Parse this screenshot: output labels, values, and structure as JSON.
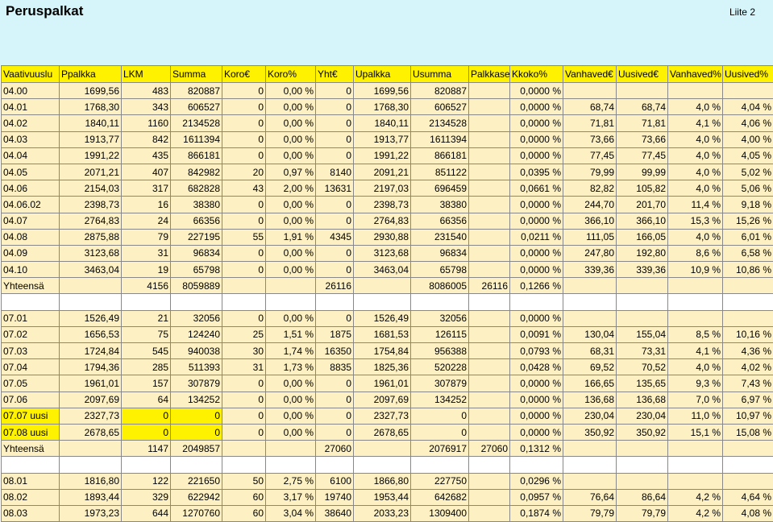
{
  "title": "Peruspalkat",
  "appendix": "Liite 2",
  "headers": [
    "Vaativuusluokka",
    "Ppalkka",
    "LKM",
    "Summa",
    "Koro€",
    "Koro%",
    "Yht€",
    "Upalkka",
    "Usumma",
    "Palkkasesitys",
    "Kkoko%",
    "Vanhaved€",
    "Uusived€",
    "Vanhaved%",
    "Uusived%"
  ],
  "header_display": [
    "Vaativuuslu",
    "Ppalkka",
    "LKM",
    "Summa",
    "Koro€",
    "Koro%",
    "Yht€",
    "Upalkka",
    "Usumma",
    "Palkkase",
    "Kkoko%",
    "Vanhaved€",
    "Uusived€",
    "Vanhaved%",
    "Uusived%"
  ],
  "rows": [
    {
      "type": "data",
      "cells": [
        "04.00",
        "1699,56",
        "483",
        "820887",
        "0",
        "0,00 %",
        "0",
        "1699,56",
        "820887",
        "",
        "0,0000 %",
        "",
        "",
        "",
        ""
      ]
    },
    {
      "type": "data",
      "cells": [
        "04.01",
        "1768,30",
        "343",
        "606527",
        "0",
        "0,00 %",
        "0",
        "1768,30",
        "606527",
        "",
        "0,0000 %",
        "68,74",
        "68,74",
        "4,0 %",
        "4,04 %"
      ]
    },
    {
      "type": "data",
      "cells": [
        "04.02",
        "1840,11",
        "1160",
        "2134528",
        "0",
        "0,00 %",
        "0",
        "1840,11",
        "2134528",
        "",
        "0,0000 %",
        "71,81",
        "71,81",
        "4,1 %",
        "4,06 %"
      ]
    },
    {
      "type": "data",
      "cells": [
        "04.03",
        "1913,77",
        "842",
        "1611394",
        "0",
        "0,00 %",
        "0",
        "1913,77",
        "1611394",
        "",
        "0,0000 %",
        "73,66",
        "73,66",
        "4,0 %",
        "4,00 %"
      ]
    },
    {
      "type": "data",
      "cells": [
        "04.04",
        "1991,22",
        "435",
        "866181",
        "0",
        "0,00 %",
        "0",
        "1991,22",
        "866181",
        "",
        "0,0000 %",
        "77,45",
        "77,45",
        "4,0 %",
        "4,05 %"
      ]
    },
    {
      "type": "data",
      "cells": [
        "04.05",
        "2071,21",
        "407",
        "842982",
        "20",
        "0,97 %",
        "8140",
        "2091,21",
        "851122",
        "",
        "0,0395 %",
        "79,99",
        "99,99",
        "4,0 %",
        "5,02 %"
      ]
    },
    {
      "type": "data",
      "cells": [
        "04.06",
        "2154,03",
        "317",
        "682828",
        "43",
        "2,00 %",
        "13631",
        "2197,03",
        "696459",
        "",
        "0,0661 %",
        "82,82",
        "105,82",
        "4,0 %",
        "5,06 %"
      ]
    },
    {
      "type": "data",
      "cells": [
        "04.06.02",
        "2398,73",
        "16",
        "38380",
        "0",
        "0,00 %",
        "0",
        "2398,73",
        "38380",
        "",
        "0,0000 %",
        "244,70",
        "201,70",
        "11,4 %",
        "9,18 %"
      ]
    },
    {
      "type": "data",
      "cells": [
        "04.07",
        "2764,83",
        "24",
        "66356",
        "0",
        "0,00 %",
        "0",
        "2764,83",
        "66356",
        "",
        "0,0000 %",
        "366,10",
        "366,10",
        "15,3 %",
        "15,26 %"
      ]
    },
    {
      "type": "data",
      "cells": [
        "04.08",
        "2875,88",
        "79",
        "227195",
        "55",
        "1,91 %",
        "4345",
        "2930,88",
        "231540",
        "",
        "0,0211 %",
        "111,05",
        "166,05",
        "4,0 %",
        "6,01 %"
      ]
    },
    {
      "type": "data",
      "cells": [
        "04.09",
        "3123,68",
        "31",
        "96834",
        "0",
        "0,00 %",
        "0",
        "3123,68",
        "96834",
        "",
        "0,0000 %",
        "247,80",
        "192,80",
        "8,6 %",
        "6,58 %"
      ]
    },
    {
      "type": "data",
      "cells": [
        "04.10",
        "3463,04",
        "19",
        "65798",
        "0",
        "0,00 %",
        "0",
        "3463,04",
        "65798",
        "",
        "0,0000 %",
        "339,36",
        "339,36",
        "10,9 %",
        "10,86 %"
      ]
    },
    {
      "type": "total",
      "cells": [
        "Yhteensä",
        "",
        "4156",
        "8059889",
        "",
        "",
        "26116",
        "",
        "8086005",
        "26116",
        "0,1266 %",
        "",
        "",
        "",
        ""
      ]
    },
    {
      "type": "blank",
      "cells": [
        "",
        "",
        "",
        "",
        "",
        "",
        "",
        "",
        "",
        "",
        "",
        "",
        "",
        "",
        ""
      ]
    },
    {
      "type": "data",
      "cells": [
        "07.01",
        "1526,49",
        "21",
        "32056",
        "0",
        "0,00 %",
        "0",
        "1526,49",
        "32056",
        "",
        "0,0000 %",
        "",
        "",
        "",
        ""
      ]
    },
    {
      "type": "data",
      "cells": [
        "07.02",
        "1656,53",
        "75",
        "124240",
        "25",
        "1,51 %",
        "1875",
        "1681,53",
        "126115",
        "",
        "0,0091 %",
        "130,04",
        "155,04",
        "8,5 %",
        "10,16 %"
      ]
    },
    {
      "type": "data",
      "cells": [
        "07.03",
        "1724,84",
        "545",
        "940038",
        "30",
        "1,74 %",
        "16350",
        "1754,84",
        "956388",
        "",
        "0,0793 %",
        "68,31",
        "73,31",
        "4,1 %",
        "4,36 %"
      ]
    },
    {
      "type": "data",
      "cells": [
        "07.04",
        "1794,36",
        "285",
        "511393",
        "31",
        "1,73 %",
        "8835",
        "1825,36",
        "520228",
        "",
        "0,0428 %",
        "69,52",
        "70,52",
        "4,0 %",
        "4,02 %"
      ]
    },
    {
      "type": "data",
      "cells": [
        "07.05",
        "1961,01",
        "157",
        "307879",
        "0",
        "0,00 %",
        "0",
        "1961,01",
        "307879",
        "",
        "0,0000 %",
        "166,65",
        "135,65",
        "9,3 %",
        "7,43 %"
      ]
    },
    {
      "type": "data",
      "cells": [
        "07.06",
        "2097,69",
        "64",
        "134252",
        "0",
        "0,00 %",
        "0",
        "2097,69",
        "134252",
        "",
        "0,0000 %",
        "136,68",
        "136,68",
        "7,0 %",
        "6,97 %"
      ]
    },
    {
      "type": "highlight",
      "cells": [
        "07.07 uusi",
        "2327,73",
        "0",
        "0",
        "0",
        "0,00 %",
        "0",
        "2327,73",
        "0",
        "",
        "0,0000 %",
        "230,04",
        "230,04",
        "11,0 %",
        "10,97 %"
      ]
    },
    {
      "type": "highlight",
      "cells": [
        "07.08 uusi",
        "2678,65",
        "0",
        "0",
        "0",
        "0,00 %",
        "0",
        "2678,65",
        "0",
        "",
        "0,0000 %",
        "350,92",
        "350,92",
        "15,1 %",
        "15,08 %"
      ]
    },
    {
      "type": "total",
      "cells": [
        "Yhteensä",
        "",
        "1147",
        "2049857",
        "",
        "",
        "27060",
        "",
        "2076917",
        "27060",
        "0,1312 %",
        "",
        "",
        "",
        ""
      ]
    },
    {
      "type": "blank",
      "cells": [
        "",
        "",
        "",
        "",
        "",
        "",
        "",
        "",
        "",
        "",
        "",
        "",
        "",
        "",
        ""
      ]
    },
    {
      "type": "data",
      "cells": [
        "08.01",
        "1816,80",
        "122",
        "221650",
        "50",
        "2,75 %",
        "6100",
        "1866,80",
        "227750",
        "",
        "0,0296 %",
        "",
        "",
        "",
        ""
      ]
    },
    {
      "type": "data",
      "cells": [
        "08.02",
        "1893,44",
        "329",
        "622942",
        "60",
        "3,17 %",
        "19740",
        "1953,44",
        "642682",
        "",
        "0,0957 %",
        "76,64",
        "86,64",
        "4,2 %",
        "4,64 %"
      ]
    },
    {
      "type": "data",
      "cells": [
        "08.03",
        "1973,23",
        "644",
        "1270760",
        "60",
        "3,04 %",
        "38640",
        "2033,23",
        "1309400",
        "",
        "0,1874 %",
        "79,79",
        "79,79",
        "4,2 %",
        "4,08 %"
      ]
    }
  ]
}
